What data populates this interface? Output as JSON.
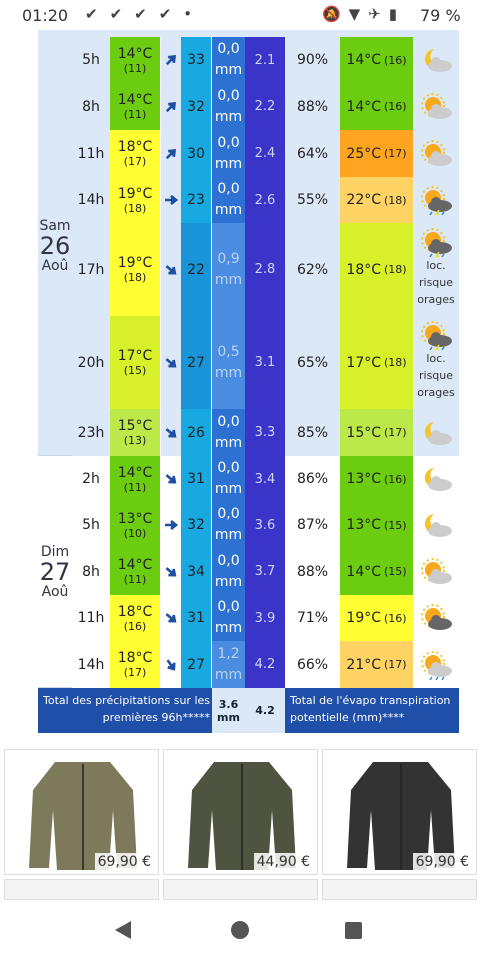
{
  "status": {
    "time": "01:20",
    "battery": "79 %"
  },
  "days": [
    {
      "name": "Sam",
      "date": "26",
      "month": "Aoû"
    },
    {
      "name": "Dim",
      "date": "27",
      "month": "Aoû"
    }
  ],
  "rows": [
    {
      "hour": "5h",
      "temp": "14°C",
      "temp_min": "(11)",
      "wind": "33",
      "precip": "0,0 mm",
      "evapo": "2.1",
      "humidity": "90%",
      "feel": "14°C",
      "feel_min": "(16)"
    },
    {
      "hour": "8h",
      "temp": "14°C",
      "temp_min": "(11)",
      "wind": "32",
      "precip": "0,0 mm",
      "evapo": "2.2",
      "humidity": "88%",
      "feel": "14°C",
      "feel_min": "(16)"
    },
    {
      "hour": "11h",
      "temp": "18°C",
      "temp_min": "(17)",
      "wind": "30",
      "precip": "0,0 mm",
      "evapo": "2.4",
      "humidity": "64%",
      "feel": "25°C",
      "feel_min": "(17)"
    },
    {
      "hour": "14h",
      "temp": "19°C",
      "temp_min": "(18)",
      "wind": "23",
      "precip": "0,0 mm",
      "evapo": "2.6",
      "humidity": "55%",
      "feel": "22°C",
      "feel_min": "(18)"
    },
    {
      "hour": "17h",
      "temp": "19°C",
      "temp_min": "(18)",
      "wind": "22",
      "precip": "0,9 mm",
      "evapo": "2.8",
      "humidity": "62%",
      "feel": "18°C",
      "feel_min": "(18)",
      "note": "loc. risque orages"
    },
    {
      "hour": "20h",
      "temp": "17°C",
      "temp_min": "(15)",
      "wind": "27",
      "precip": "0,5 mm",
      "evapo": "3.1",
      "humidity": "65%",
      "feel": "17°C",
      "feel_min": "(18)",
      "note": "loc. risque orages"
    },
    {
      "hour": "23h",
      "temp": "15°C",
      "temp_min": "(13)",
      "wind": "26",
      "precip": "0,0 mm",
      "evapo": "3.3",
      "humidity": "85%",
      "feel": "15°C",
      "feel_min": "(17)"
    },
    {
      "hour": "2h",
      "temp": "14°C",
      "temp_min": "(11)",
      "wind": "31",
      "precip": "0,0 mm",
      "evapo": "3.4",
      "humidity": "86%",
      "feel": "13°C",
      "feel_min": "(16)"
    },
    {
      "hour": "5h",
      "temp": "13°C",
      "temp_min": "(10)",
      "wind": "32",
      "precip": "0,0 mm",
      "evapo": "3.6",
      "humidity": "87%",
      "feel": "13°C",
      "feel_min": "(15)"
    },
    {
      "hour": "8h",
      "temp": "14°C",
      "temp_min": "(11)",
      "wind": "34",
      "precip": "0,0 mm",
      "evapo": "3.7",
      "humidity": "88%",
      "feel": "14°C",
      "feel_min": "(15)"
    },
    {
      "hour": "11h",
      "temp": "18°C",
      "temp_min": "(16)",
      "wind": "31",
      "precip": "0,0 mm",
      "evapo": "3.9",
      "humidity": "71%",
      "feel": "19°C",
      "feel_min": "(16)"
    },
    {
      "hour": "14h",
      "temp": "18°C",
      "temp_min": "(17)",
      "wind": "27",
      "precip": "1,2 mm",
      "evapo": "4.2",
      "humidity": "66%",
      "feel": "21°C",
      "feel_min": "(17)"
    }
  ],
  "footer": {
    "precip_label": "Total des précipitations sur les premières 96h*****",
    "precip_total": "3.6 mm",
    "evapo_total": "4.2",
    "evapo_label": "Total de l'évapo transpiration potentielle (mm)****"
  },
  "ads": {
    "prices": [
      "69,90 €",
      "44,90 €",
      "69,90 €"
    ]
  }
}
